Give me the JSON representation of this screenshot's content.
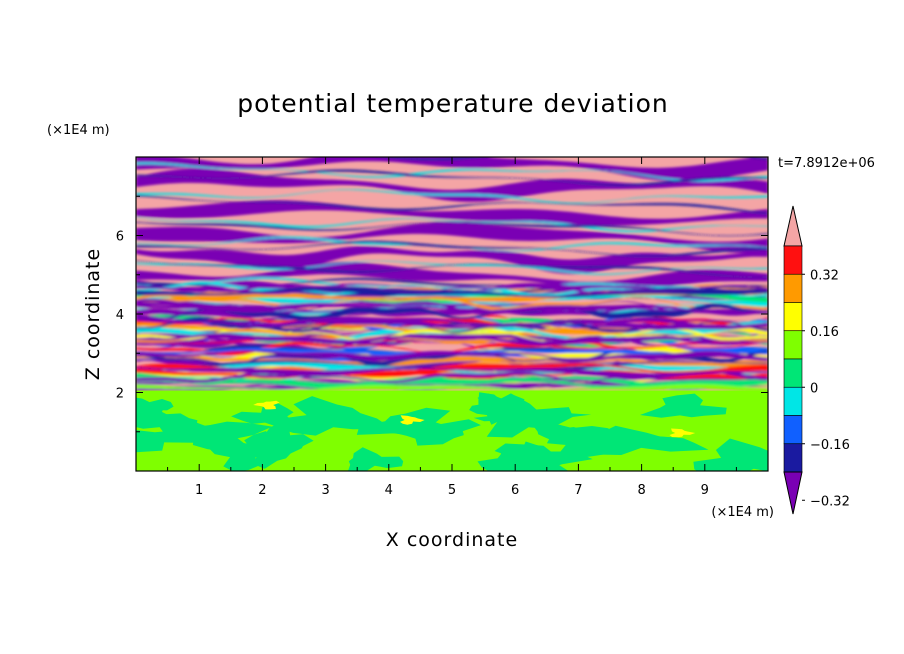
{
  "chart_data": {
    "type": "heatmap",
    "title": "potential temperature deviation",
    "xlabel": "X coordinate",
    "ylabel": "Z coordinate",
    "x_unit": "(×1E4 m)",
    "y_unit": "(×1E4 m)",
    "time_label": "t=7.8912e+06",
    "xlim": [
      0,
      10
    ],
    "ylim": [
      0,
      8
    ],
    "x_ticks": [
      "1",
      "2",
      "3",
      "4",
      "5",
      "6",
      "7",
      "8",
      "9"
    ],
    "y_ticks": [
      "2",
      "4",
      "6"
    ],
    "colorbar": {
      "tick_labels": [
        "0.32",
        "0.16",
        "0",
        "−0.16",
        "−0.32"
      ],
      "level_colors": [
        "#7a00b4",
        "#1a1aa0",
        "#1060ff",
        "#00e6e6",
        "#00e676",
        "#7fff00",
        "#ffff00",
        "#ff9a00",
        "#ff1010",
        "#f4a5a5"
      ],
      "extend": "both"
    }
  }
}
